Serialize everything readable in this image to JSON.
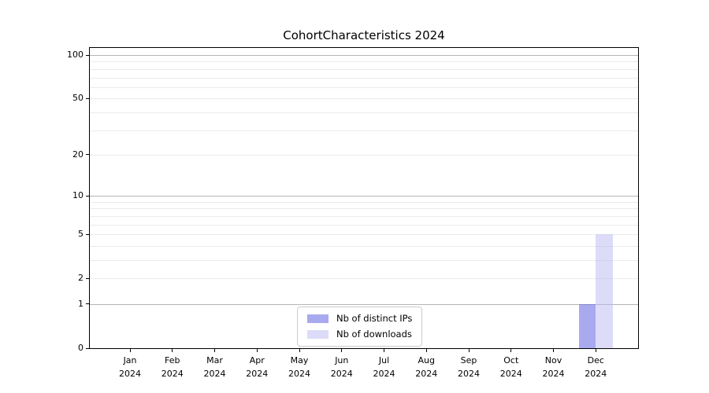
{
  "title": "CohortCharacteristics 2024",
  "legend": {
    "items": [
      {
        "label": "Nb of distinct IPs",
        "color": "#a9a9ef"
      },
      {
        "label": "Nb of downloads",
        "color": "#dcdcf8"
      }
    ]
  },
  "axes": {
    "yticks": [
      0,
      1,
      2,
      5,
      10,
      20,
      50,
      100
    ],
    "major_gridlines": [
      1,
      10,
      100
    ],
    "minor_gridlines": [
      2,
      3,
      4,
      6,
      7,
      8,
      9,
      20,
      30,
      40,
      60,
      70,
      80,
      90,
      5,
      50
    ],
    "grid_major_color": "#b5b5b5",
    "grid_minor_color": "#ebebeb"
  },
  "chart_data": {
    "type": "bar",
    "title": "CohortCharacteristics 2024",
    "categories": [
      {
        "month": "Jan",
        "year": "2024"
      },
      {
        "month": "Feb",
        "year": "2024"
      },
      {
        "month": "Mar",
        "year": "2024"
      },
      {
        "month": "Apr",
        "year": "2024"
      },
      {
        "month": "May",
        "year": "2024"
      },
      {
        "month": "Jun",
        "year": "2024"
      },
      {
        "month": "Jul",
        "year": "2024"
      },
      {
        "month": "Aug",
        "year": "2024"
      },
      {
        "month": "Sep",
        "year": "2024"
      },
      {
        "month": "Oct",
        "year": "2024"
      },
      {
        "month": "Nov",
        "year": "2024"
      },
      {
        "month": "Dec",
        "year": "2024"
      }
    ],
    "series": [
      {
        "name": "Nb of distinct IPs",
        "color": "#a9a9ef",
        "fill": "rgba(83,83,223,0.5)",
        "values": [
          0,
          0,
          0,
          0,
          0,
          0,
          0,
          0,
          0,
          0,
          0,
          1
        ]
      },
      {
        "name": "Nb of downloads",
        "color": "#dcdcf8",
        "fill": "rgba(185,185,241,0.5)",
        "values": [
          0,
          0,
          0,
          0,
          0,
          0,
          0,
          0,
          0,
          0,
          0,
          5
        ]
      }
    ],
    "yscale": "log1p",
    "ylim": [
      0,
      112
    ],
    "yticks": [
      0,
      1,
      2,
      5,
      10,
      20,
      50,
      100
    ],
    "xlabel": "",
    "ylabel": "",
    "grid": true,
    "legend_position": "lower center"
  }
}
